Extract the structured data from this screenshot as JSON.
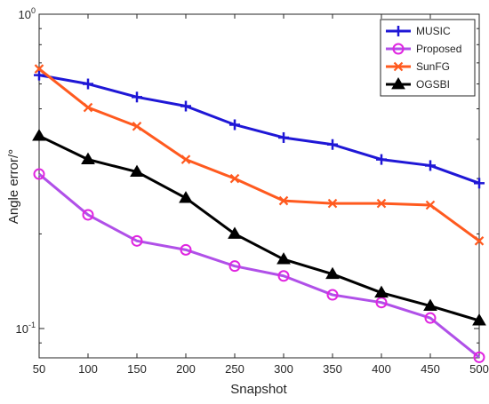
{
  "chart_data": {
    "type": "line",
    "title": "",
    "xlabel": "Snapshot",
    "ylabel": "Angle error/°",
    "xlim": [
      50,
      500
    ],
    "ylim": [
      0.08,
      1.0
    ],
    "yscale": "log",
    "x": [
      50,
      100,
      150,
      200,
      250,
      300,
      350,
      400,
      450,
      500
    ],
    "x_tick_labels": [
      "50",
      "100",
      "150",
      "200",
      "250",
      "300",
      "350",
      "400",
      "450",
      "500"
    ],
    "y_tick_labels": [
      {
        "value": 1.0,
        "base": "10",
        "exp": "0"
      },
      {
        "value": 0.1,
        "base": "10",
        "exp": "-1"
      }
    ],
    "grid": false,
    "legend_position": "top-right",
    "series": [
      {
        "name": "MUSIC",
        "color": "#1f17d6",
        "marker": "plus",
        "values": [
          0.64,
          0.6,
          0.545,
          0.51,
          0.445,
          0.405,
          0.385,
          0.345,
          0.33,
          0.29
        ]
      },
      {
        "name": "Proposed",
        "color": "#e025e0",
        "line_color": "#b050e8",
        "marker": "circle",
        "values": [
          0.31,
          0.23,
          0.19,
          0.178,
          0.158,
          0.147,
          0.128,
          0.121,
          0.108,
          0.081
        ]
      },
      {
        "name": "SunFG",
        "color": "#ff5a1f",
        "marker": "x",
        "values": [
          0.67,
          0.505,
          0.44,
          0.345,
          0.3,
          0.255,
          0.25,
          0.25,
          0.247,
          0.19
        ]
      },
      {
        "name": "OGSBI",
        "color": "#000000",
        "marker": "triangle",
        "values": [
          0.41,
          0.345,
          0.315,
          0.26,
          0.2,
          0.166,
          0.149,
          0.13,
          0.118,
          0.106
        ]
      }
    ]
  }
}
